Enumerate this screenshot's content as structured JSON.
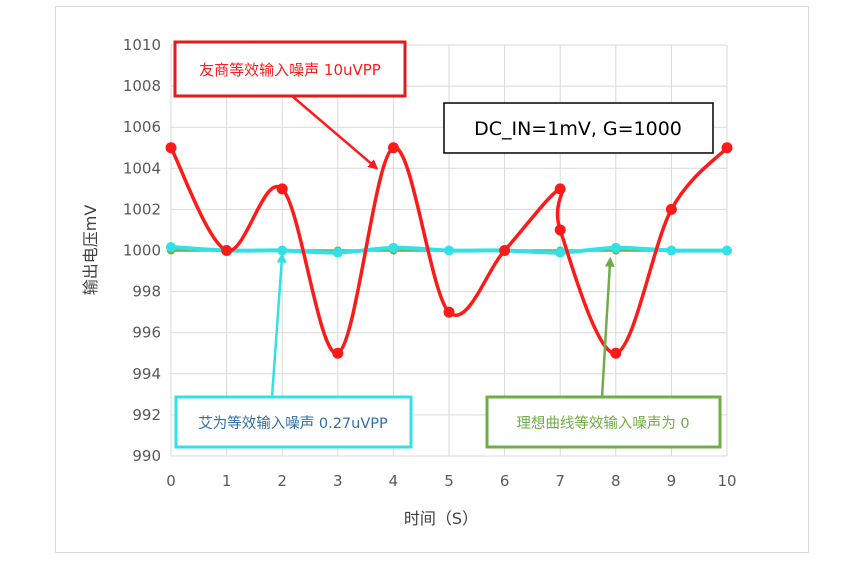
{
  "chart_data": {
    "type": "line",
    "title": "",
    "xlabel": "时间（S）",
    "ylabel": "输出电压mV",
    "xlim": [
      0,
      10
    ],
    "ylim": [
      990,
      1010
    ],
    "x_ticks": [
      0,
      1,
      2,
      3,
      4,
      5,
      6,
      7,
      8,
      9,
      10
    ],
    "y_ticks": [
      990,
      992,
      994,
      996,
      998,
      1000,
      1002,
      1004,
      1006,
      1008,
      1010
    ],
    "grid": true,
    "legend": "none",
    "series": [
      {
        "color": "#70ad47",
        "x": [
          0,
          1,
          2,
          3,
          4,
          5,
          6,
          7,
          8,
          9,
          10
        ],
        "y": [
          1000,
          1000,
          1000,
          1000,
          1000,
          1000,
          1000,
          1000,
          1000,
          1000,
          1000
        ]
      },
      {
        "color": "#33e0e6",
        "x": [
          0,
          1,
          2,
          3,
          4,
          5,
          6,
          7,
          8,
          9,
          10
        ],
        "y": [
          1000.17,
          1000.0,
          1000.0,
          999.9,
          1000.13,
          1000.0,
          1000.0,
          999.9,
          1000.13,
          1000.0,
          1000.0
        ]
      },
      {
        "color": "#ff1a1a",
        "x": [
          0,
          1,
          2,
          3,
          4,
          5,
          6,
          7,
          7,
          8,
          9,
          10
        ],
        "y": [
          1005,
          1000,
          1003,
          995,
          1005,
          997,
          1000,
          1003,
          1001,
          995,
          1002,
          1005
        ]
      }
    ],
    "annotations": [
      {
        "text": "友商等效输入噪声 10uVPP",
        "color": "#ff1a1a",
        "border": "#e31a1c",
        "arrow_to": [
          3.7,
          1004
        ]
      },
      {
        "text": "DC_IN=1mV, G=1000",
        "color": "#000000",
        "border": "#000000"
      },
      {
        "text": "艾为等效输入噪声 0.27uVPP",
        "color": "#2f6fa8",
        "border": "#33e0e6",
        "arrow_to": [
          2,
          999.8
        ]
      },
      {
        "text": "理想曲线等效输入噪声为 0",
        "color": "#70ad47",
        "border": "#70ad47",
        "arrow_to": [
          7.9,
          999.6
        ]
      }
    ]
  }
}
